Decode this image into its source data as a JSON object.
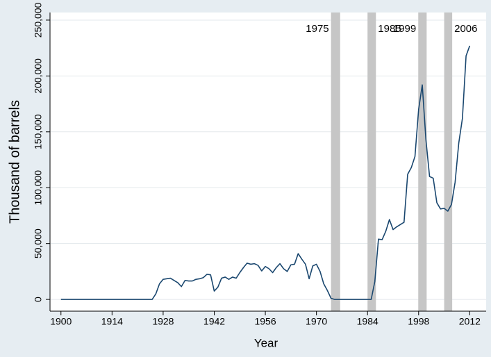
{
  "chart_data": {
    "type": "line",
    "x_label": "Year",
    "y_label": "Thousand of barrels",
    "x": [
      1900,
      1901,
      1902,
      1903,
      1904,
      1905,
      1906,
      1907,
      1908,
      1909,
      1910,
      1911,
      1912,
      1913,
      1914,
      1915,
      1916,
      1917,
      1918,
      1919,
      1920,
      1921,
      1922,
      1923,
      1924,
      1925,
      1926,
      1927,
      1928,
      1929,
      1930,
      1931,
      1932,
      1933,
      1934,
      1935,
      1936,
      1937,
      1938,
      1939,
      1940,
      1941,
      1942,
      1943,
      1944,
      1945,
      1946,
      1947,
      1948,
      1949,
      1950,
      1951,
      1952,
      1953,
      1954,
      1955,
      1956,
      1957,
      1958,
      1959,
      1960,
      1961,
      1962,
      1963,
      1964,
      1965,
      1966,
      1967,
      1968,
      1969,
      1970,
      1971,
      1972,
      1973,
      1974,
      1975,
      1976,
      1977,
      1978,
      1979,
      1980,
      1981,
      1982,
      1983,
      1984,
      1985,
      1986,
      1987,
      1988,
      1989,
      1990,
      1991,
      1992,
      1993,
      1994,
      1995,
      1996,
      1997,
      1998,
      1999,
      2000,
      2001,
      2002,
      2003,
      2004,
      2005,
      2006,
      2007,
      2008,
      2009,
      2010,
      2011,
      2012
    ],
    "values": [
      0,
      0,
      0,
      0,
      0,
      0,
      0,
      0,
      0,
      0,
      0,
      0,
      0,
      0,
      0,
      0,
      0,
      0,
      0,
      0,
      0,
      0,
      0,
      0,
      0,
      0,
      5000,
      14000,
      18000,
      18500,
      19000,
      17000,
      15000,
      11500,
      17000,
      16500,
      16500,
      18000,
      18500,
      19500,
      22500,
      22000,
      7500,
      11000,
      19000,
      20000,
      18000,
      20000,
      19000,
      24000,
      28500,
      32500,
      31500,
      32000,
      30500,
      25500,
      29500,
      27500,
      24000,
      28500,
      32000,
      27500,
      25000,
      31000,
      31500,
      41000,
      36000,
      31500,
      18500,
      30000,
      31500,
      25000,
      14000,
      8000,
      1000,
      0,
      0,
      0,
      0,
      0,
      0,
      0,
      0,
      0,
      0,
      0,
      16000,
      54000,
      53500,
      61000,
      71500,
      62500,
      65000,
      67000,
      69000,
      112000,
      118000,
      128000,
      170000,
      192000,
      143000,
      110000,
      108500,
      86500,
      81000,
      81500,
      79000,
      85000,
      105000,
      140000,
      162000,
      218000,
      227000
    ],
    "color": "#1a476f",
    "bands": [
      {
        "label": "1975",
        "start": 1974,
        "end": 1976.5
      },
      {
        "label": "1985",
        "start": 1984,
        "end": 1986.3
      },
      {
        "label": "1999",
        "start": 1997.9,
        "end": 2000.2
      },
      {
        "label": "2006",
        "start": 2005,
        "end": 2007.2
      }
    ],
    "band_color": "#c6c6c6",
    "xlim": [
      1897,
      2016.5
    ],
    "xticks": [
      1900,
      1914,
      1928,
      1942,
      1956,
      1970,
      1984,
      1998,
      2012
    ],
    "ylim": [
      -10500,
      256800
    ],
    "yticks": [
      0,
      {
        "value": 50000,
        "label": "50,000"
      },
      {
        "value": 100000,
        "label": "100,000"
      },
      {
        "value": 150000,
        "label": "150,000"
      },
      {
        "value": 200000,
        "label": "200,000"
      },
      {
        "value": 250000,
        "label": "250,000"
      }
    ],
    "grid": true
  }
}
